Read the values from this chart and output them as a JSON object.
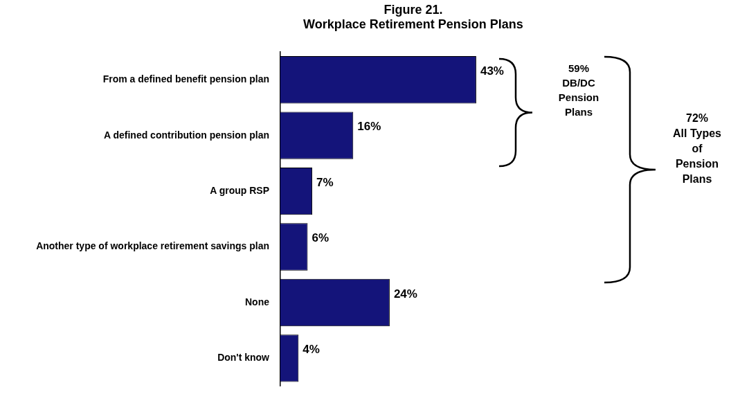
{
  "chart_data": {
    "type": "bar",
    "orientation": "horizontal",
    "title": "Figure 21.\nWorkplace Retirement Pension Plans",
    "categories": [
      "From a defined benefit pension plan",
      "A defined contribution pension plan",
      "A group RSP",
      "Another type of workplace retirement savings plan",
      "None",
      "Don't know"
    ],
    "values": [
      43,
      16,
      7,
      6,
      24,
      4
    ],
    "value_labels": [
      "43%",
      "16%",
      "7%",
      "6%",
      "24%",
      "4%"
    ],
    "color": "#14147a",
    "tick_labels": "y",
    "legend": false,
    "annotations": [
      "59%\nDB/DC\nPension\nPlans",
      "72%\nAll Types\nof\nPension\nPlans"
    ]
  }
}
